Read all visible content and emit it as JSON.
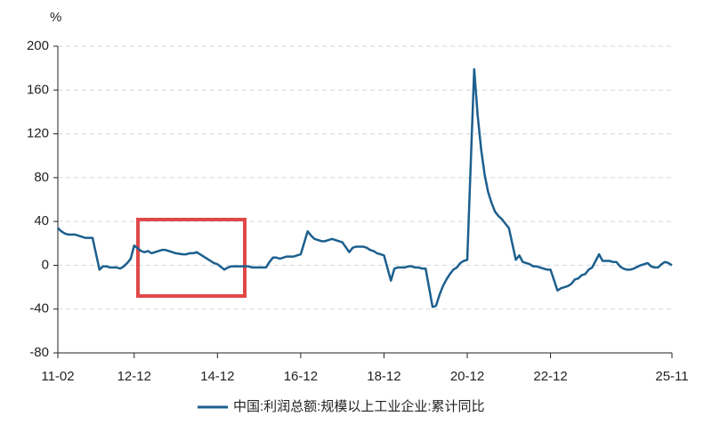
{
  "chart_data": {
    "type": "line",
    "unit": "%",
    "x": [
      "11-02",
      "11-03",
      "11-04",
      "11-05",
      "11-06",
      "11-07",
      "11-08",
      "11-09",
      "11-10",
      "11-11",
      "11-12",
      "12-02",
      "12-03",
      "12-04",
      "12-05",
      "12-06",
      "12-07",
      "12-08",
      "12-09",
      "12-10",
      "12-11",
      "12-12",
      "13-02",
      "13-03",
      "13-04",
      "13-05",
      "13-06",
      "13-07",
      "13-08",
      "13-09",
      "13-10",
      "13-11",
      "13-12",
      "14-02",
      "14-03",
      "14-04",
      "14-05",
      "14-06",
      "14-07",
      "14-08",
      "14-09",
      "14-10",
      "14-11",
      "14-12",
      "15-02",
      "15-03",
      "15-04",
      "15-05",
      "15-06",
      "15-07",
      "15-08",
      "15-09",
      "15-10",
      "15-11",
      "15-12",
      "16-02",
      "16-03",
      "16-04",
      "16-05",
      "16-06",
      "16-07",
      "16-08",
      "16-09",
      "16-10",
      "16-11",
      "16-12",
      "17-02",
      "17-03",
      "17-04",
      "17-05",
      "17-06",
      "17-07",
      "17-08",
      "17-09",
      "17-10",
      "17-11",
      "17-12",
      "18-02",
      "18-03",
      "18-04",
      "18-05",
      "18-06",
      "18-07",
      "18-08",
      "18-09",
      "18-10",
      "18-11",
      "18-12",
      "19-02",
      "19-03",
      "19-04",
      "19-05",
      "19-06",
      "19-07",
      "19-08",
      "19-09",
      "19-10",
      "19-11",
      "19-12",
      "20-02",
      "20-03",
      "20-04",
      "20-05",
      "20-06",
      "20-07",
      "20-08",
      "20-09",
      "20-10",
      "20-11",
      "20-12",
      "21-02",
      "21-03",
      "21-04",
      "21-05",
      "21-06",
      "21-07",
      "21-08",
      "21-09",
      "21-10",
      "21-11",
      "21-12",
      "22-02",
      "22-03",
      "22-04",
      "22-05",
      "22-06",
      "22-07",
      "22-08",
      "22-09",
      "22-10",
      "22-11",
      "22-12",
      "23-02",
      "23-03",
      "23-04",
      "23-05",
      "23-06",
      "23-07",
      "23-08",
      "23-09",
      "23-10",
      "23-11",
      "23-12",
      "24-02",
      "24-03",
      "24-04",
      "24-05",
      "24-06",
      "24-07",
      "24-08",
      "24-09",
      "24-10",
      "24-11",
      "24-12",
      "25-02",
      "25-03",
      "25-04",
      "25-05",
      "25-06",
      "25-07",
      "25-08",
      "25-09",
      "25-10",
      "25-11"
    ],
    "series": [
      {
        "name": "中国:利润总额:规模以上工业企业:累计同比",
        "color": "#1c5f8e",
        "values": [
          34,
          31,
          29,
          28,
          28,
          28,
          27,
          26,
          25,
          25,
          25,
          -4,
          -1,
          -1,
          -2,
          -2,
          -2,
          -3,
          -1,
          2,
          6,
          18,
          13,
          12,
          13,
          11,
          12,
          13,
          14,
          14,
          13,
          12,
          11,
          10,
          10,
          11,
          11,
          12,
          10,
          8,
          6,
          4,
          2,
          1,
          -4,
          -2,
          -1,
          -1,
          -1,
          -1,
          -1,
          -1,
          -2,
          -2,
          -2,
          -2,
          3,
          7,
          7,
          6,
          7,
          8,
          8,
          8,
          9,
          10,
          31,
          27,
          24,
          23,
          22,
          22,
          23,
          24,
          23,
          22,
          21,
          12,
          16,
          17,
          17,
          17,
          16,
          14,
          13,
          11,
          10,
          9,
          -14,
          -3,
          -2,
          -2,
          -2,
          -1,
          -1,
          -2,
          -2,
          -3,
          -3,
          -38,
          -37,
          -27,
          -19,
          -13,
          -8,
          -4,
          -2,
          2,
          4,
          5,
          179,
          137,
          106,
          83,
          67,
          57,
          49,
          45,
          42,
          38,
          34,
          5,
          9,
          3,
          2,
          1,
          -1,
          -1,
          -2,
          -3,
          -4,
          -4,
          -23,
          -21,
          -20,
          -19,
          -17,
          -13,
          -12,
          -9,
          -8,
          -4,
          -2,
          10,
          4,
          4,
          4,
          3,
          3,
          -1,
          -3,
          -4,
          -4,
          -3,
          0,
          1,
          2,
          -1,
          -2,
          -2,
          1,
          3,
          2,
          0
        ]
      }
    ],
    "xlim": [
      "11-02",
      "25-11"
    ],
    "xticks": [
      "11-02",
      "12-12",
      "14-12",
      "16-12",
      "18-12",
      "20-12",
      "22-12",
      "25-11"
    ],
    "ylim": [
      -80,
      200
    ],
    "yticks": [
      200,
      160,
      120,
      80,
      40,
      0,
      -40,
      -80
    ],
    "grid": true
  }
}
